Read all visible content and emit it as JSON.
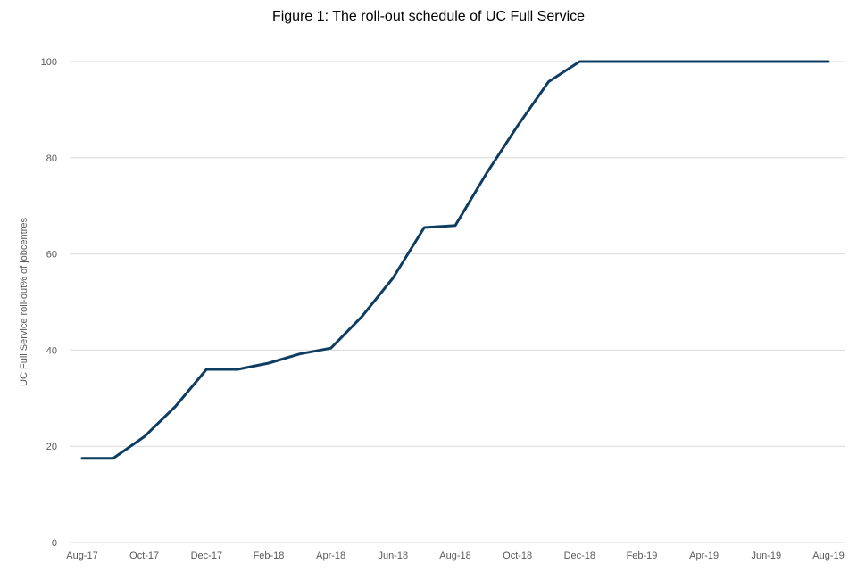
{
  "chart_data": {
    "type": "line",
    "title": "Figure 1: The roll-out  schedule of UC Full Service",
    "xlabel": "",
    "ylabel": "UC Full Service roll-out% of jobcentres",
    "ylim": [
      0,
      100
    ],
    "yticks": [
      0,
      20,
      40,
      60,
      80,
      100
    ],
    "grid": true,
    "legend": "none",
    "line_color": "#0e3d61",
    "x": [
      "Aug-17",
      "Sep-17",
      "Oct-17",
      "Nov-17",
      "Dec-17",
      "Jan-18",
      "Feb-18",
      "Mar-18",
      "Apr-18",
      "May-18",
      "Jun-18",
      "Jul-18",
      "Aug-18",
      "Sep-18",
      "Oct-18",
      "Nov-18",
      "Dec-18",
      "Jan-19",
      "Feb-19",
      "Mar-19",
      "Apr-19",
      "May-19",
      "Jun-19",
      "Jul-19",
      "Aug-19"
    ],
    "xtick_labels": [
      "Aug-17",
      "Oct-17",
      "Dec-17",
      "Feb-18",
      "Apr-18",
      "Jun-18",
      "Aug-18",
      "Oct-18",
      "Dec-18",
      "Feb-19",
      "Apr-19",
      "Jun-19",
      "Aug-19"
    ],
    "series": [
      {
        "values": [
          17.5,
          17.5,
          22,
          28.3,
          36,
          36,
          37.3,
          39.2,
          40.4,
          47,
          55,
          65.5,
          65.9,
          76.7,
          86.6,
          95.8,
          100,
          100,
          100,
          100,
          100,
          100,
          100,
          100,
          100
        ]
      }
    ]
  }
}
